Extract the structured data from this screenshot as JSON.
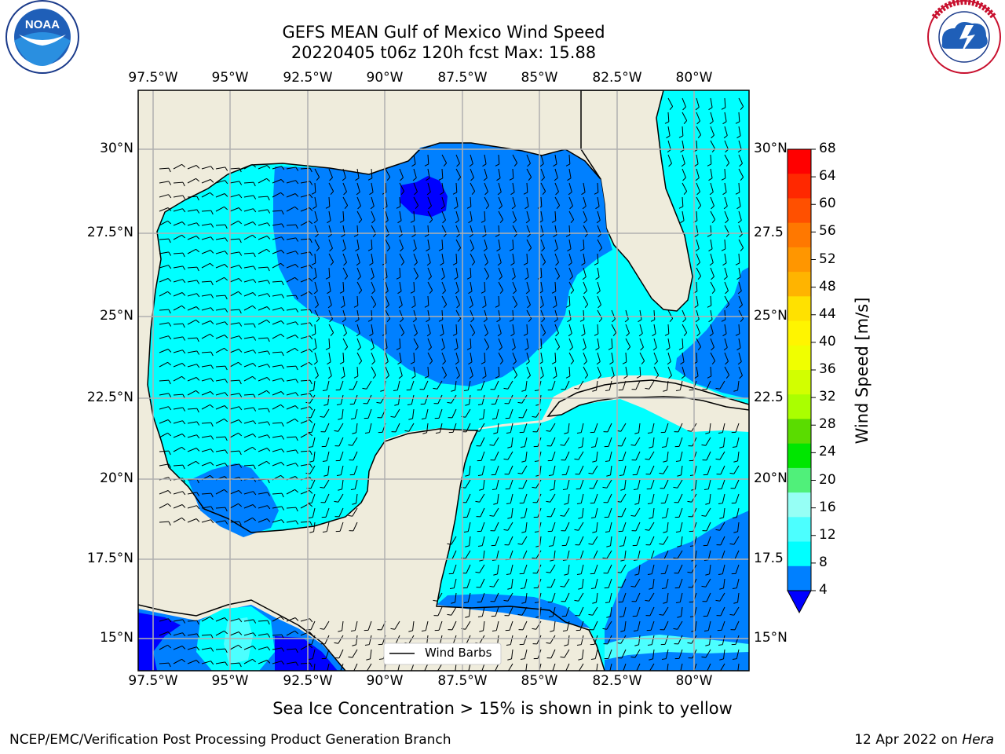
{
  "header": {
    "title_line1": "GEFS MEAN Gulf of Mexico Wind Speed",
    "title_line2": "20220405 t06z 120h fcst   Max: 15.88"
  },
  "logos": {
    "noaa_text": "NOAA",
    "noaa_ring": "NATIONAL OCEANIC AND ATMOSPHERIC ADMINISTRATION · U.S. DEPARTMENT OF COMMERCE",
    "nws_ring": "NATIONAL WEATHER SERVICE"
  },
  "map": {
    "lon_labels": [
      "97.5°W",
      "95°W",
      "92.5°W",
      "90°W",
      "87.5°W",
      "85°W",
      "82.5°W",
      "80°W"
    ],
    "lat_labels_left": [
      "30°N",
      "27.5°N",
      "25°N",
      "22.5°N",
      "20°N",
      "17.5°N",
      "15°N"
    ],
    "lat_labels_right": [
      "30°N",
      "27.5",
      "25°N",
      "22.5",
      "20°N",
      "17.5",
      "15°N"
    ],
    "legend_label": "Wind Barbs",
    "land_color": "#efecdc",
    "ocean_colors": {
      "4-8": "#0080ff",
      "8-12": "#00ffff",
      "below-4": "#0000ff",
      "12-16": "#4cffff"
    }
  },
  "colorbar": {
    "label": "Wind Speed [m/s]",
    "ticks": [
      "68",
      "64",
      "60",
      "56",
      "52",
      "48",
      "44",
      "40",
      "36",
      "32",
      "28",
      "24",
      "20",
      "16",
      "12",
      "8",
      "4"
    ],
    "colors": [
      "#ff0000",
      "#ff2800",
      "#ff5000",
      "#ff7800",
      "#ff9600",
      "#ffb400",
      "#ffe100",
      "#fff500",
      "#f0ff00",
      "#d2ff00",
      "#aaff00",
      "#5adc00",
      "#00e600",
      "#50f07a",
      "#96fff5",
      "#4cffff",
      "#00ffff",
      "#0080ff"
    ],
    "under_color": "#0000ff"
  },
  "caption": "Sea Ice Concentration > 15% is shown in pink to yellow",
  "footer": {
    "left": "NCEP/EMC/Verification Post Processing Product Generation Branch",
    "right_date": "12 Apr 2022 on ",
    "right_host": "Hera"
  }
}
